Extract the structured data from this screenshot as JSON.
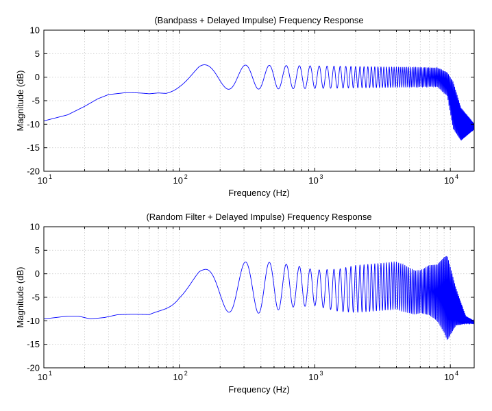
{
  "chart_data": [
    {
      "type": "line",
      "title": "(Bandpass + Delayed Impulse) Frequency Response",
      "xlabel": "Frequency (Hz)",
      "ylabel": "Magnitude (dB)",
      "xscale": "log",
      "xlim": [
        10,
        15000
      ],
      "ylim": [
        -20,
        10
      ],
      "yticks": [
        10,
        5,
        0,
        -5,
        -10,
        -15,
        -20
      ],
      "xticks": [
        {
          "base": "10",
          "exp": "1",
          "value": 10
        },
        {
          "base": "10",
          "exp": "2",
          "value": 100
        },
        {
          "base": "10",
          "exp": "3",
          "value": 1000
        },
        {
          "base": "10",
          "exp": "4",
          "value": 10000
        }
      ],
      "grid": true,
      "series": [
        {
          "color": "#0000ff",
          "delay_ms": 6.5,
          "envelope_db": [
            [
              10,
              -9.3
            ],
            [
              15,
              -8.0
            ],
            [
              20,
              -6.2
            ],
            [
              25,
              -4.6
            ],
            [
              30,
              -3.7
            ],
            [
              40,
              -3.3
            ],
            [
              60,
              -3.2
            ],
            [
              80,
              -2.4
            ],
            [
              100,
              -1.0
            ],
            [
              140,
              0.3
            ],
            [
              200,
              0.0
            ],
            [
              300,
              0.0
            ],
            [
              1000,
              0.0
            ],
            [
              8000,
              0.0
            ],
            [
              9500,
              -1.5
            ],
            [
              10500,
              -6.0
            ],
            [
              12000,
              -10.0
            ],
            [
              15000,
              -10.5
            ]
          ],
          "ripple_db": [
            [
              10,
              0.0
            ],
            [
              40,
              0.0
            ],
            [
              70,
              0.6
            ],
            [
              100,
              1.8
            ],
            [
              150,
              2.4
            ],
            [
              250,
              2.6
            ],
            [
              1000,
              2.4
            ],
            [
              8000,
              2.0
            ],
            [
              9500,
              2.5
            ],
            [
              10500,
              5.0
            ],
            [
              12000,
              3.5
            ],
            [
              15000,
              0.6
            ]
          ]
        }
      ]
    },
    {
      "type": "line",
      "title": "(Random Filter + Delayed Impulse) Frequency Response",
      "xlabel": "Frequency (Hz)",
      "ylabel": "Magnitude (dB)",
      "xscale": "log",
      "xlim": [
        10,
        15000
      ],
      "ylim": [
        -20,
        10
      ],
      "yticks": [
        10,
        5,
        0,
        -5,
        -10,
        -15,
        -20
      ],
      "xticks": [
        {
          "base": "10",
          "exp": "1",
          "value": 10
        },
        {
          "base": "10",
          "exp": "2",
          "value": 100
        },
        {
          "base": "10",
          "exp": "3",
          "value": 1000
        },
        {
          "base": "10",
          "exp": "4",
          "value": 10000
        }
      ],
      "grid": true,
      "series": [
        {
          "color": "#0000ff",
          "delay_ms": 6.5,
          "envelope_db": [
            [
              10,
              -9.6
            ],
            [
              15,
              -9.0
            ],
            [
              18,
              -9.0
            ],
            [
              22,
              -9.6
            ],
            [
              28,
              -9.3
            ],
            [
              35,
              -8.7
            ],
            [
              45,
              -8.6
            ],
            [
              60,
              -8.6
            ],
            [
              80,
              -6.0
            ],
            [
              100,
              -3.5
            ],
            [
              140,
              -2.3
            ],
            [
              200,
              -3.0
            ],
            [
              300,
              -3.0
            ],
            [
              700,
              -2.6
            ],
            [
              1000,
              -3.0
            ],
            [
              1500,
              -3.5
            ],
            [
              2500,
              -3.0
            ],
            [
              4000,
              -2.5
            ],
            [
              5500,
              -4.0
            ],
            [
              7000,
              -3.5
            ],
            [
              9000,
              -4.5
            ],
            [
              11000,
              -7.0
            ],
            [
              13000,
              -9.8
            ],
            [
              15000,
              -10.3
            ]
          ],
          "ripple_db": [
            [
              10,
              0.0
            ],
            [
              40,
              0.0
            ],
            [
              60,
              0.1
            ],
            [
              80,
              1.4
            ],
            [
              100,
              2.8
            ],
            [
              150,
              3.3
            ],
            [
              250,
              5.5
            ],
            [
              400,
              5.5
            ],
            [
              1000,
              3.8
            ],
            [
              2000,
              5.0
            ],
            [
              3000,
              5.0
            ],
            [
              4500,
              5.0
            ],
            [
              6000,
              4.5
            ],
            [
              8000,
              6.0
            ],
            [
              9500,
              9.0
            ],
            [
              11000,
              4.0
            ],
            [
              13000,
              0.8
            ],
            [
              15000,
              0.3
            ]
          ]
        }
      ]
    }
  ],
  "figure": {
    "tick_exp_base": "10"
  }
}
